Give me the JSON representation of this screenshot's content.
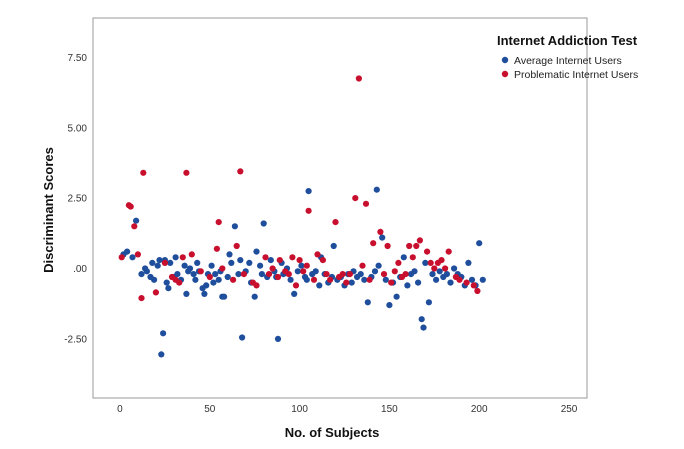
{
  "chart_data": {
    "type": "scatter",
    "title": "",
    "xlabel": "No. of Subjects",
    "ylabel": "Discriminant Scores",
    "xlim": [
      -15,
      260
    ],
    "ylim": [
      -4.6,
      8.9
    ],
    "xticks": [
      0,
      50,
      100,
      150,
      200,
      250
    ],
    "xtick_labels": [
      "0",
      "50",
      "100",
      "150",
      "200",
      "250"
    ],
    "yticks": [
      7.5,
      5.0,
      2.5,
      0.0,
      -2.5
    ],
    "ytick_labels": [
      "7.50",
      "5.00",
      "2.50",
      ".00",
      "-2.50"
    ],
    "grid": false,
    "legend": {
      "title": "Internet Addiction Test",
      "position": "top-right"
    },
    "series": [
      {
        "name": "Average Internet Users",
        "color": "#1f4e9c",
        "x": [
          2,
          4,
          7,
          9,
          12,
          14,
          15,
          17,
          18,
          19,
          21,
          22,
          23,
          24,
          25,
          26,
          27,
          28,
          30,
          31,
          32,
          34,
          36,
          37,
          38,
          39,
          41,
          42,
          43,
          44,
          46,
          47,
          48,
          49,
          51,
          52,
          53,
          55,
          56,
          57,
          58,
          60,
          61,
          62,
          64,
          66,
          67,
          68,
          70,
          72,
          73,
          75,
          76,
          78,
          79,
          80,
          82,
          84,
          86,
          87,
          88,
          90,
          91,
          93,
          95,
          97,
          99,
          101,
          103,
          104,
          105,
          107,
          109,
          111,
          112,
          114,
          116,
          118,
          119,
          121,
          123,
          125,
          127,
          129,
          130,
          132,
          134,
          136,
          138,
          140,
          142,
          143,
          144,
          146,
          148,
          150,
          152,
          154,
          156,
          158,
          160,
          162,
          164,
          166,
          168,
          169,
          170,
          172,
          174,
          176,
          178,
          180,
          182,
          184,
          186,
          188,
          190,
          192,
          194,
          196,
          198,
          200,
          202
        ],
        "y": [
          0.5,
          0.6,
          0.4,
          1.7,
          -0.2,
          0.0,
          -0.1,
          -0.3,
          0.2,
          -0.4,
          0.1,
          0.3,
          -3.05,
          -2.3,
          0.3,
          -0.5,
          -0.7,
          0.2,
          -0.3,
          0.4,
          -0.2,
          -0.4,
          0.1,
          -0.9,
          -0.1,
          0.0,
          -0.2,
          -0.4,
          0.2,
          -0.1,
          -0.7,
          -0.9,
          -0.6,
          -0.2,
          0.1,
          -0.5,
          -0.2,
          -0.4,
          -0.1,
          -1.0,
          -1.0,
          -0.3,
          0.5,
          0.2,
          1.5,
          -0.2,
          0.3,
          -2.45,
          -0.1,
          0.2,
          -0.5,
          -1.0,
          0.6,
          0.1,
          -0.2,
          1.6,
          -0.3,
          0.3,
          -0.1,
          -0.3,
          -2.5,
          0.2,
          -0.2,
          0.0,
          -0.4,
          -0.9,
          -0.1,
          0.1,
          -0.3,
          -0.4,
          2.75,
          -0.2,
          -0.1,
          -0.6,
          0.4,
          -0.2,
          -0.5,
          -0.3,
          0.8,
          -0.4,
          -0.3,
          -0.6,
          -0.2,
          -0.5,
          -0.1,
          -0.3,
          -0.2,
          -0.4,
          -1.2,
          -0.3,
          -0.1,
          2.8,
          0.1,
          1.1,
          -0.4,
          -1.3,
          -0.5,
          -1.0,
          -0.3,
          0.4,
          -0.6,
          -0.2,
          -0.1,
          -0.5,
          -1.8,
          -2.1,
          0.2,
          -1.2,
          -0.2,
          -0.4,
          -0.1,
          -0.3,
          -0.2,
          -0.5,
          0.0,
          -0.2,
          -0.3,
          -0.6,
          0.2,
          -0.4,
          -0.6,
          0.9,
          -0.4
        ]
      },
      {
        "name": "Problematic Internet Users",
        "color": "#c8102e",
        "x": [
          1,
          5,
          6,
          8,
          10,
          12,
          13,
          20,
          25,
          29,
          31,
          33,
          35,
          37,
          40,
          45,
          50,
          54,
          55,
          57,
          63,
          65,
          67,
          69,
          74,
          76,
          81,
          83,
          85,
          88,
          89,
          92,
          94,
          96,
          98,
          100,
          102,
          104,
          105,
          108,
          110,
          113,
          115,
          117,
          120,
          122,
          124,
          126,
          128,
          131,
          133,
          135,
          137,
          139,
          141,
          145,
          147,
          149,
          151,
          153,
          155,
          157,
          159,
          161,
          163,
          165,
          167,
          171,
          173,
          175,
          177,
          179,
          181,
          183,
          187,
          189,
          193,
          197,
          199
        ],
        "y": [
          0.4,
          2.25,
          2.2,
          1.5,
          0.5,
          -1.05,
          3.4,
          -0.85,
          0.2,
          -0.3,
          -0.4,
          -0.5,
          0.4,
          3.4,
          0.5,
          -0.1,
          -0.3,
          0.7,
          1.65,
          0.0,
          -0.4,
          0.8,
          3.45,
          -0.2,
          -0.5,
          -0.6,
          0.4,
          -0.2,
          0.0,
          -0.3,
          0.3,
          -0.1,
          -0.2,
          0.4,
          -0.6,
          0.3,
          -0.1,
          0.1,
          2.05,
          -0.4,
          0.5,
          0.3,
          -0.2,
          -0.4,
          1.65,
          -0.3,
          -0.2,
          -0.5,
          -0.2,
          2.5,
          6.75,
          0.1,
          2.3,
          -0.4,
          0.9,
          1.3,
          -0.2,
          0.8,
          -0.5,
          -0.1,
          0.2,
          -0.3,
          -0.2,
          0.8,
          0.4,
          0.8,
          1.0,
          0.6,
          0.2,
          0.0,
          0.2,
          0.3,
          0.0,
          0.6,
          -0.3,
          -0.4,
          -0.5,
          -0.6,
          -0.8
        ]
      }
    ]
  }
}
